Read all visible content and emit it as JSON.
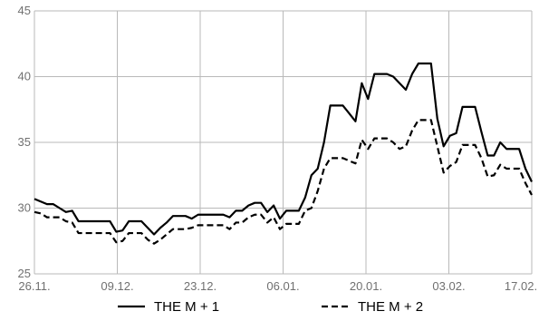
{
  "chart_data": {
    "type": "line",
    "title": "",
    "xlabel": "",
    "ylabel": "",
    "x_tick_labels": [
      "26.11.",
      "09.12.",
      "23.12.",
      "06.01.",
      "20.01.",
      "03.02.",
      "17.02."
    ],
    "y_tick_labels": [
      "25",
      "30",
      "35",
      "40",
      "45"
    ],
    "ylim": [
      25,
      45
    ],
    "grid": true,
    "legend_position": "bottom",
    "series": [
      {
        "name": "THE M + 1",
        "color": "#000000",
        "dash": "solid",
        "values": [
          30.7,
          30.5,
          30.3,
          30.3,
          30.0,
          29.7,
          29.8,
          29.0,
          29.0,
          29.0,
          29.0,
          29.0,
          29.0,
          28.2,
          28.3,
          29.0,
          29.0,
          29.0,
          28.5,
          28.0,
          28.5,
          28.9,
          29.4,
          29.4,
          29.4,
          29.2,
          29.5,
          29.5,
          29.5,
          29.5,
          29.5,
          29.3,
          29.8,
          29.8,
          30.2,
          30.4,
          30.4,
          29.7,
          30.2,
          29.2,
          29.8,
          29.8,
          29.8,
          30.8,
          32.5,
          33.0,
          35.0,
          37.8,
          37.8,
          37.8,
          37.2,
          36.6,
          39.5,
          38.3,
          40.2,
          40.2,
          40.2,
          40.0,
          39.5,
          39.0,
          40.2,
          41.0,
          41.0,
          41.0,
          36.8,
          34.7,
          35.5,
          35.7,
          37.7,
          37.7,
          37.7,
          35.8,
          34.0,
          34.0,
          35.0,
          34.5,
          34.5,
          34.5,
          33.0,
          32.0
        ]
      },
      {
        "name": "THE M + 2",
        "color": "#000000",
        "dash": "dashed",
        "values": [
          29.7,
          29.6,
          29.3,
          29.3,
          29.3,
          29.0,
          28.9,
          28.1,
          28.1,
          28.1,
          28.1,
          28.1,
          28.1,
          27.4,
          27.5,
          28.1,
          28.1,
          28.1,
          27.6,
          27.3,
          27.6,
          28.0,
          28.4,
          28.4,
          28.4,
          28.5,
          28.7,
          28.7,
          28.7,
          28.7,
          28.7,
          28.4,
          28.9,
          28.9,
          29.3,
          29.5,
          29.5,
          28.9,
          29.3,
          28.4,
          28.8,
          28.8,
          28.8,
          29.8,
          30.0,
          31.3,
          33.0,
          33.8,
          33.8,
          33.8,
          33.6,
          33.4,
          35.2,
          34.5,
          35.3,
          35.3,
          35.3,
          35.0,
          34.5,
          34.7,
          35.9,
          36.7,
          36.7,
          36.7,
          34.7,
          32.7,
          33.2,
          33.5,
          34.8,
          34.8,
          34.8,
          33.8,
          32.4,
          32.5,
          33.3,
          33.0,
          33.0,
          33.0,
          31.9,
          31.0
        ]
      }
    ]
  }
}
